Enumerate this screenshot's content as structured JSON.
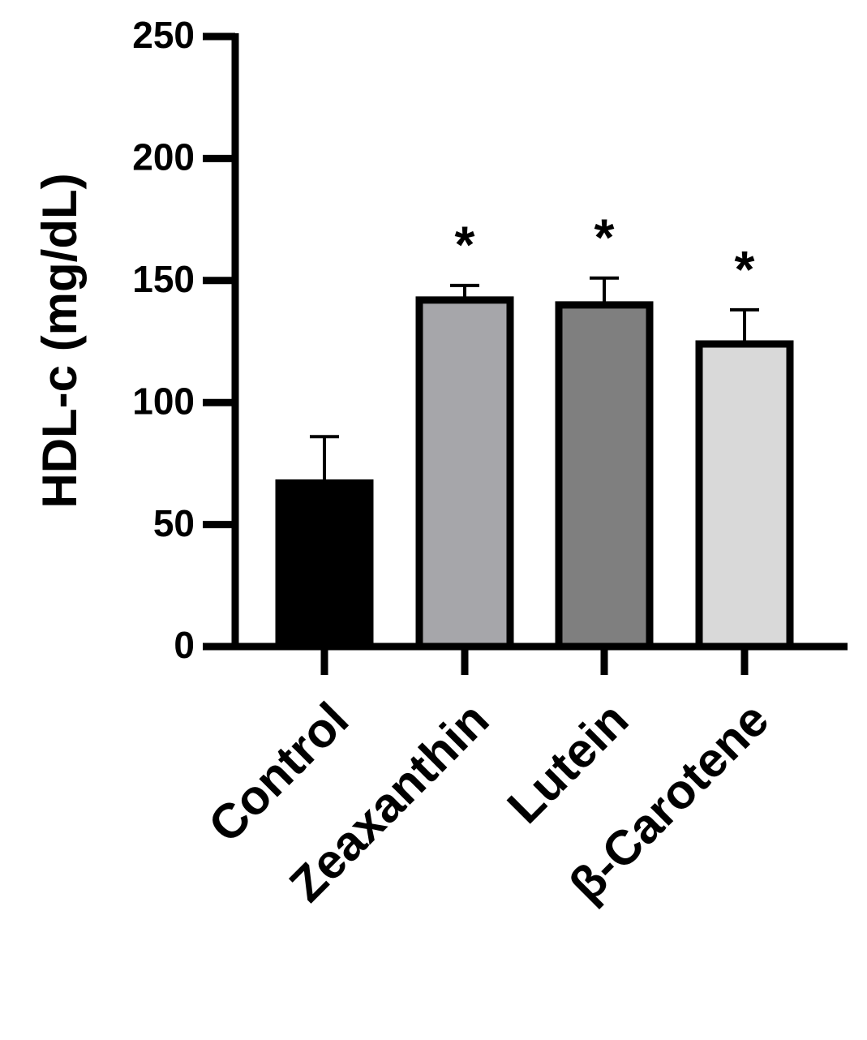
{
  "chart_data": {
    "type": "bar",
    "ylabel": "HDL-c (mg/dL)",
    "categories": [
      "Control",
      "Zeaxanthin",
      "Lutein",
      "β-Carotene"
    ],
    "values": [
      67,
      142,
      140,
      124
    ],
    "errors": [
      19,
      6,
      11,
      14
    ],
    "colors": [
      "#000000",
      "#a6a6aa",
      "#7f7f7f",
      "#d9d9d9"
    ],
    "annotations": [
      null,
      "*",
      "*",
      "*"
    ],
    "ylim": [
      0,
      250
    ],
    "yticks": [
      0,
      50,
      100,
      150,
      200,
      250
    ]
  }
}
